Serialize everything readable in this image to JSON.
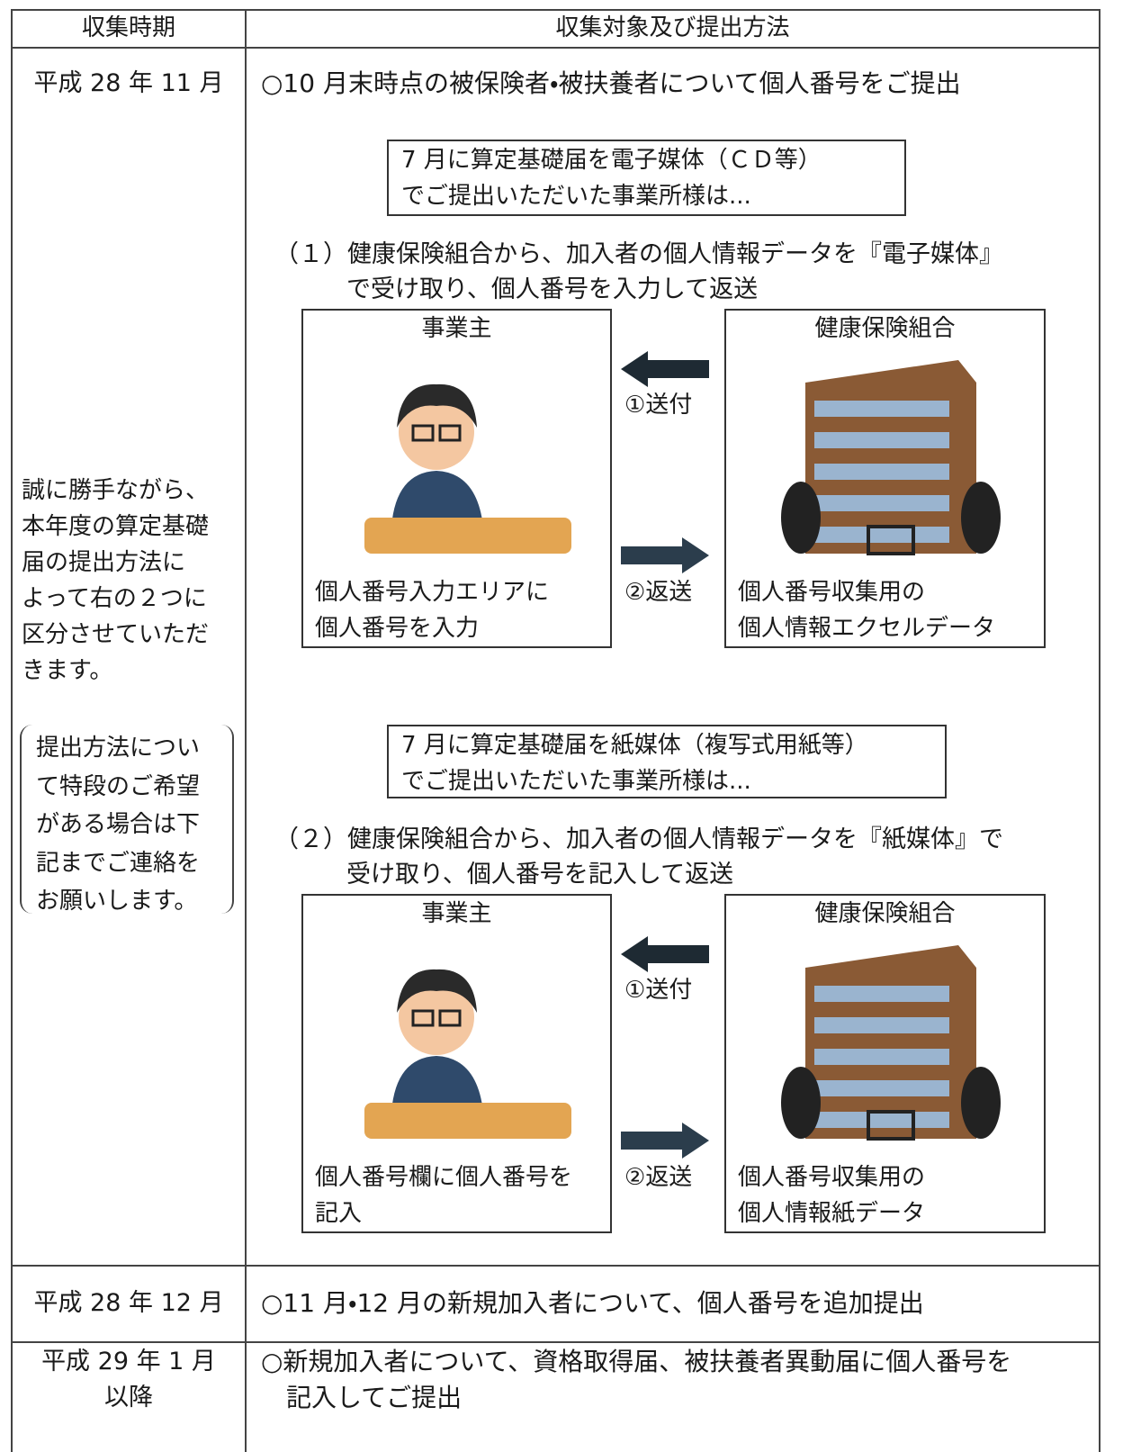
{
  "table": {
    "headers": [
      "収集時期",
      "収集対象及び提出方法"
    ],
    "rows": [
      {
        "period": [
          "平成 28 年 11 月"
        ],
        "content": [
          "○10 月末時点の被保険者・被扶養者について個人番号をご提出"
        ],
        "note": [
          "誠に勝手ながら、",
          "本年度の算定基礎",
          "届の提出方法に",
          "よって右の２つに",
          "区分させていただ",
          "きます。"
        ],
        "request": [
          "提出方法につい",
          "て特段のご希望",
          "がある場合は下",
          "記までご連絡を",
          "お願いします。"
        ],
        "cases": [
          {
            "banner": [
              "7 月に算定基礎届を電子媒体（ＣＤ等）",
              "でご提出いただいた事業所様は..."
            ],
            "title": [
              "（１）健康保険組合から、加入者の個人情報データを『電子媒体』",
              "で受け取り、個人番号を入力して返送"
            ],
            "employer": {
              "label": "事業主",
              "caption": [
                "個人番号入力エリアに",
                "個人番号を入力"
              ]
            },
            "union": {
              "label": "健康保険組合",
              "caption": [
                "個人番号収集用の",
                "個人情報エクセルデータ"
              ]
            },
            "send": "①送付",
            "return": "②返送"
          },
          {
            "banner": [
              "7 月に算定基礎届を紙媒体（複写式用紙等）",
              "でご提出いただいた事業所様は..."
            ],
            "title": [
              "（２）健康保険組合から、加入者の個人情報データを『紙媒体』で",
              "受け取り、個人番号を記入して返送"
            ],
            "employer": {
              "label": "事業主",
              "caption": [
                "個人番号欄に個人番号を",
                "記入"
              ]
            },
            "union": {
              "label": "健康保険組合",
              "caption": [
                "個人番号収集用の",
                "個人情報紙データ"
              ]
            },
            "send": "①送付",
            "return": "②返送"
          }
        ]
      },
      {
        "period": [
          "平成 28 年 12 月"
        ],
        "content": [
          "○11 月・12 月の新規加入者について、個人番号を追加提出"
        ]
      },
      {
        "period": [
          "平成 29 年 1 月",
          "以降"
        ],
        "content": [
          "○新規加入者について、資格取得届、被扶養者異動届に個人番号を",
          "記入してご提出"
        ]
      }
    ]
  }
}
